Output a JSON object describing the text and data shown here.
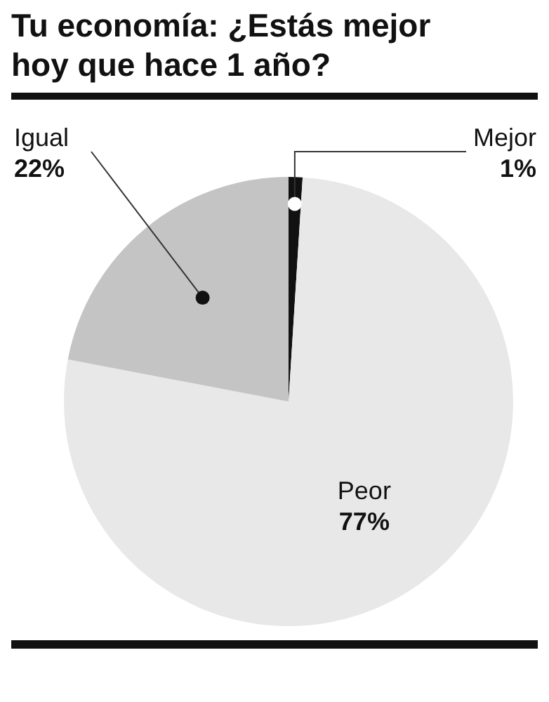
{
  "chart_data": {
    "type": "pie",
    "title": "Tu economía: ¿Estás mejor hoy que hace 1 año?",
    "categories": [
      "Mejor",
      "Peor",
      "Igual"
    ],
    "values": [
      1,
      77,
      22
    ],
    "colors": [
      "#111111",
      "#e8e8e8",
      "#c4c4c4"
    ],
    "value_labels": [
      "1%",
      "77%",
      "22%"
    ],
    "legend": false
  }
}
